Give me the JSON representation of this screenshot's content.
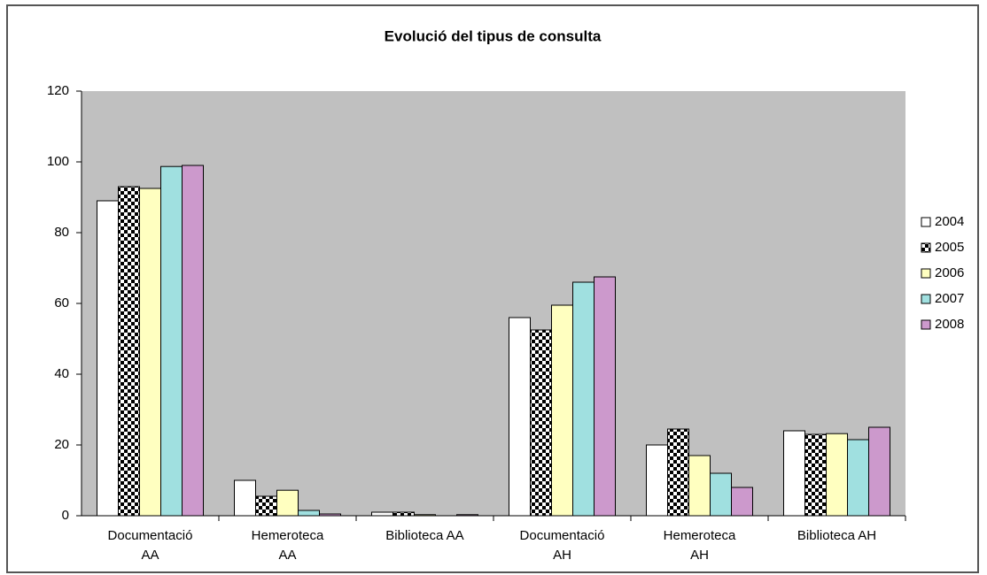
{
  "chart_data": {
    "type": "bar",
    "title": "Evolució del tipus de consulta",
    "categories": [
      "Documentació AA",
      "Hemeroteca AA",
      "Biblioteca AA",
      "Documentació AH",
      "Hemeroteca AH",
      "Biblioteca AH"
    ],
    "series": [
      {
        "name": "2004",
        "color": "#ffffff",
        "values": [
          89,
          10,
          1,
          56,
          20,
          24
        ]
      },
      {
        "name": "2005",
        "color": "#000000",
        "pattern": "checkerboard",
        "values": [
          93,
          5.5,
          1,
          52.5,
          24.5,
          23
        ]
      },
      {
        "name": "2006",
        "color": "#ffffc0",
        "values": [
          92.5,
          7.2,
          0.3,
          59.5,
          17,
          23.2
        ]
      },
      {
        "name": "2007",
        "color": "#a0e0e0",
        "values": [
          98.7,
          1.5,
          0,
          66,
          12,
          21.5
        ]
      },
      {
        "name": "2008",
        "color": "#cc99cc",
        "values": [
          99,
          0.5,
          0.3,
          67.5,
          8,
          25
        ]
      }
    ],
    "ylim": [
      0,
      120
    ],
    "yticks": [
      0,
      20,
      40,
      60,
      80,
      100,
      120
    ],
    "grid": false,
    "plot_background": "#c0c0c0",
    "legend": "right"
  }
}
